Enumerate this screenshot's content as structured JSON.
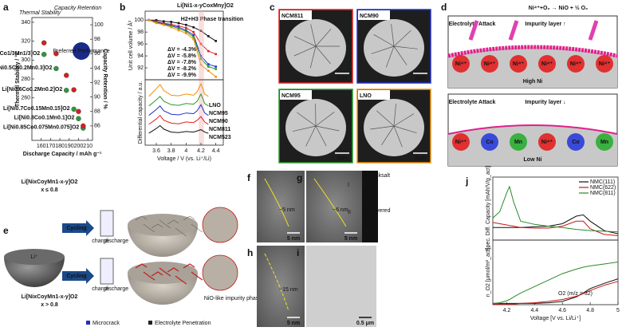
{
  "chart_data": [
    {
      "type": "scatter",
      "label": "a",
      "xlabel": "Discharge Capacity / mAh g⁻¹",
      "ylabel": "Thermal Stability / °C",
      "y2label": "Capacity Retention / %",
      "x": [
        163,
        176,
        187,
        195,
        200,
        205
      ],
      "xlim": [
        150,
        215
      ],
      "xticks": [
        160,
        170,
        180,
        190,
        200,
        210
      ],
      "ylim": [
        215,
        345
      ],
      "yticks": [
        260,
        280,
        300,
        320,
        340
      ],
      "y2lim": [
        84,
        101
      ],
      "y2ticks": [
        86,
        88,
        90,
        92,
        94,
        96,
        98,
        100
      ],
      "point_labels": [
        "Li[Ni1/3Co1/3Mn1/3]O2",
        "Li[Ni0.5Co0.2Mn0.3]O2",
        "Li[Ni0.6Co0.2Mn0.2]O2",
        "Li[Ni0.7Co0.15Mn0.15]O2",
        "Li[Ni0.8Co0.1Mn0.1]O2",
        "Li[Ni0.85Co0.075Mn0.075]O2"
      ],
      "annotation": "Preferred Performance",
      "series": [
        {
          "name": "Thermal Stability",
          "color": "#2e9a3a",
          "values": [
            306,
            291,
            268,
            248,
            238,
            228
          ]
        },
        {
          "name": "Capacity Retention",
          "color": "#d42020",
          "axis": "y2",
          "values": [
            97.5,
            96,
            93,
            91,
            88,
            86
          ]
        }
      ]
    },
    {
      "type": "line",
      "label": "b",
      "title": "Li[Ni1-x-yCoxMny]O2",
      "annotation": "H2+H3 Phase transition",
      "ylabel": "Unit cell volume / Å³",
      "x": [
        3.5,
        3.6,
        3.7,
        3.8,
        3.9,
        4.0,
        4.1,
        4.2,
        4.3,
        4.4
      ],
      "xlim": [
        3.45,
        4.5
      ],
      "ylim": [
        90,
        101.5
      ],
      "yticks": [
        92,
        94,
        96,
        98,
        100
      ],
      "series": [
        {
          "name": "ΔV = -4.3%",
          "color": "#111111",
          "values": [
            100,
            100,
            99.8,
            99.7,
            99.5,
            99.2,
            98.8,
            98.2,
            97.3,
            96.5
          ]
        },
        {
          "name": "ΔV = -5.8%",
          "color": "#e02020",
          "values": [
            100,
            99.8,
            99.5,
            99.3,
            99.0,
            98.7,
            98.0,
            96.0,
            94.8,
            94.3
          ]
        },
        {
          "name": "ΔV = -7.8%",
          "color": "#2030d0",
          "values": [
            100,
            99.7,
            99.4,
            99.1,
            98.8,
            98.3,
            97.5,
            94.0,
            92.6,
            92.2
          ]
        },
        {
          "name": "ΔV = -8.2%",
          "color": "#2a9a2a",
          "values": [
            100,
            99.6,
            99.3,
            99.0,
            98.6,
            98.1,
            97.2,
            93.5,
            92.2,
            91.8
          ]
        },
        {
          "name": "ΔV = -9.9%",
          "color": "#f0900a",
          "values": [
            100,
            99.5,
            99.2,
            98.8,
            98.3,
            97.8,
            96.8,
            92.5,
            91.5,
            90.5
          ]
        }
      ]
    },
    {
      "type": "line",
      "ylabel": "Differential capacity / a.u.",
      "xlabel": "Voltage / V (vs. Li⁺/Li)",
      "x": [
        3.5,
        3.6,
        3.65,
        3.7,
        3.8,
        3.9,
        4.0,
        4.1,
        4.15,
        4.2,
        4.25,
        4.3
      ],
      "xlim": [
        3.45,
        4.5
      ],
      "xticks": [
        3.6,
        3.8,
        4.0,
        4.2,
        4.4
      ],
      "ylim": [
        0,
        11
      ],
      "series": [
        {
          "name": "LNO",
          "color": "#f0900a",
          "values": [
            8.2,
            9.5,
            10.2,
            9.2,
            8.4,
            8.3,
            8.6,
            8.4,
            9.0,
            10.3,
            8.6,
            8.2
          ]
        },
        {
          "name": "NCM95",
          "color": "#2a9a2a",
          "values": [
            6.6,
            7.6,
            8.2,
            7.4,
            6.8,
            6.7,
            7.0,
            6.9,
            7.4,
            8.6,
            7.0,
            6.6
          ]
        },
        {
          "name": "NCM90",
          "color": "#2030d0",
          "values": [
            5.0,
            6.0,
            6.6,
            5.8,
            5.2,
            5.1,
            5.4,
            5.3,
            5.8,
            6.8,
            5.4,
            5.0
          ]
        },
        {
          "name": "NCM811",
          "color": "#e02020",
          "values": [
            3.5,
            4.4,
            5.0,
            4.2,
            3.7,
            3.6,
            3.9,
            3.8,
            4.2,
            4.8,
            3.9,
            3.5
          ]
        },
        {
          "name": "NCM523",
          "color": "#111111",
          "values": [
            2.0,
            2.8,
            3.3,
            2.7,
            2.2,
            2.1,
            2.3,
            2.2,
            2.4,
            2.6,
            2.2,
            2.0
          ]
        }
      ]
    },
    {
      "type": "line",
      "label": "j",
      "ylabel": "Spec. Diff. Capacity [mAh/V/g_act]",
      "x": [
        4.1,
        4.15,
        4.2,
        4.22,
        4.25,
        4.3,
        4.4,
        4.5,
        4.6,
        4.7,
        4.75,
        4.8,
        4.9,
        5.0
      ],
      "xlim": [
        4.1,
        5.0
      ],
      "ylim": [
        0,
        10
      ],
      "legend": "top-right",
      "series": [
        {
          "name": "NMC(111)",
          "color": "#111111",
          "values": [
            2.0,
            2.0,
            2.0,
            2.0,
            2.0,
            2.0,
            2.1,
            2.2,
            2.6,
            3.8,
            4.0,
            3.0,
            1.5,
            1.0
          ]
        },
        {
          "name": "NMC(622)",
          "color": "#c81818",
          "values": [
            2.8,
            2.6,
            2.4,
            2.3,
            2.2,
            2.0,
            1.9,
            1.9,
            2.2,
            3.0,
            3.0,
            1.8,
            0.9,
            0.7
          ]
        },
        {
          "name": "NMC(811)",
          "color": "#2a8a2a",
          "values": [
            3.5,
            4.5,
            7.5,
            8.5,
            6.0,
            3.0,
            2.5,
            2.2,
            2.0,
            1.7,
            1.6,
            1.5,
            1.4,
            1.3
          ]
        }
      ]
    },
    {
      "type": "line",
      "ylabel": "n_O2 [μmol/m²_act]",
      "xlabel": "Voltage [V vs. Li/Li⁺]",
      "annotation": "O2 (m/z = 32)",
      "x": [
        4.1,
        4.15,
        4.2,
        4.22,
        4.25,
        4.3,
        4.4,
        4.5,
        4.6,
        4.7,
        4.75,
        4.8,
        4.9,
        5.0
      ],
      "xlim": [
        4.1,
        5.0
      ],
      "xticks": [
        4.2,
        4.4,
        4.6,
        4.8,
        5.0
      ],
      "ylim": [
        0,
        10
      ],
      "series": [
        {
          "color": "#111111",
          "values": [
            0.2,
            0.2,
            0.2,
            0.2,
            0.2,
            0.2,
            0.2,
            0.3,
            0.5,
            1.2,
            1.8,
            2.5,
            3.3,
            4.0
          ]
        },
        {
          "color": "#c81818",
          "values": [
            0.1,
            0.1,
            0.1,
            0.1,
            0.1,
            0.2,
            0.3,
            0.5,
            0.8,
            1.3,
            1.7,
            2.2,
            3.0,
            3.6
          ]
        },
        {
          "color": "#2a8a2a",
          "values": [
            0.2,
            0.3,
            0.6,
            0.8,
            1.2,
            1.8,
            2.8,
            3.8,
            4.8,
            5.5,
            5.8,
            6.0,
            6.3,
            6.6
          ]
        }
      ]
    }
  ],
  "panels": {
    "c": {
      "label": "c",
      "images": [
        {
          "name": "NCM811",
          "color": "#e02020",
          "scale": "2μm"
        },
        {
          "name": "NCM90",
          "color": "#2030d0",
          "scale": "2μm"
        },
        {
          "name": "NCM95",
          "color": "#2a9a2a",
          "scale": "2μm"
        },
        {
          "name": "LNO",
          "color": "#f0900a",
          "scale": "2μm"
        }
      ]
    },
    "d": {
      "label": "d",
      "equation": "Ni⁴⁺+O₂ → NiO + ½ O₂",
      "high": {
        "attack": "Electrolyte Attack",
        "layer": "Impurity layer ↑",
        "name": "High Ni",
        "ions": [
          "Ni⁴⁺",
          "Ni⁴⁺",
          "Ni⁴⁺",
          "Ni⁴⁺",
          "Ni⁴⁺",
          "Ni⁴⁺"
        ]
      },
      "low": {
        "attack": "Electrolyte Attack",
        "layer": "Impurity layer ↓",
        "name": "Low Ni",
        "ions": [
          "Ni⁴⁺",
          "Co",
          "Mn",
          "Ni⁴⁺",
          "Co",
          "Mn"
        ]
      }
    },
    "e": {
      "label": "e",
      "ion": "Li⁺",
      "top": {
        "formula": "Li[NixCoyMn1-x-y]O2",
        "condition": "x ≤ 0.8",
        "arrow": "Cycling",
        "charge": "charge",
        "discharge": "discharge"
      },
      "bottom": {
        "formula": "Li[NixCoyMn1-x-y]O2",
        "condition": "x > 0.8",
        "arrow": "Cycling",
        "charge": "charge",
        "discharge": "discharge",
        "note": "NiO-like impurity phase"
      },
      "legend": [
        "Microcrack",
        "Electrolyte Penetration"
      ]
    },
    "tem": {
      "f": {
        "label": "f",
        "size": "~5 nm",
        "scale": "5 nm"
      },
      "g": {
        "label": "g",
        "size": "~6 nm",
        "scale": "5 nm",
        "regions": [
          "I",
          "II"
        ],
        "fft": [
          "I- Rocksalt",
          "II- Layered"
        ]
      },
      "h": {
        "label": "h",
        "size": "~15 nm",
        "scale": "5 nm"
      },
      "i": {
        "label": "i",
        "scale": "0.5 μm"
      }
    }
  }
}
